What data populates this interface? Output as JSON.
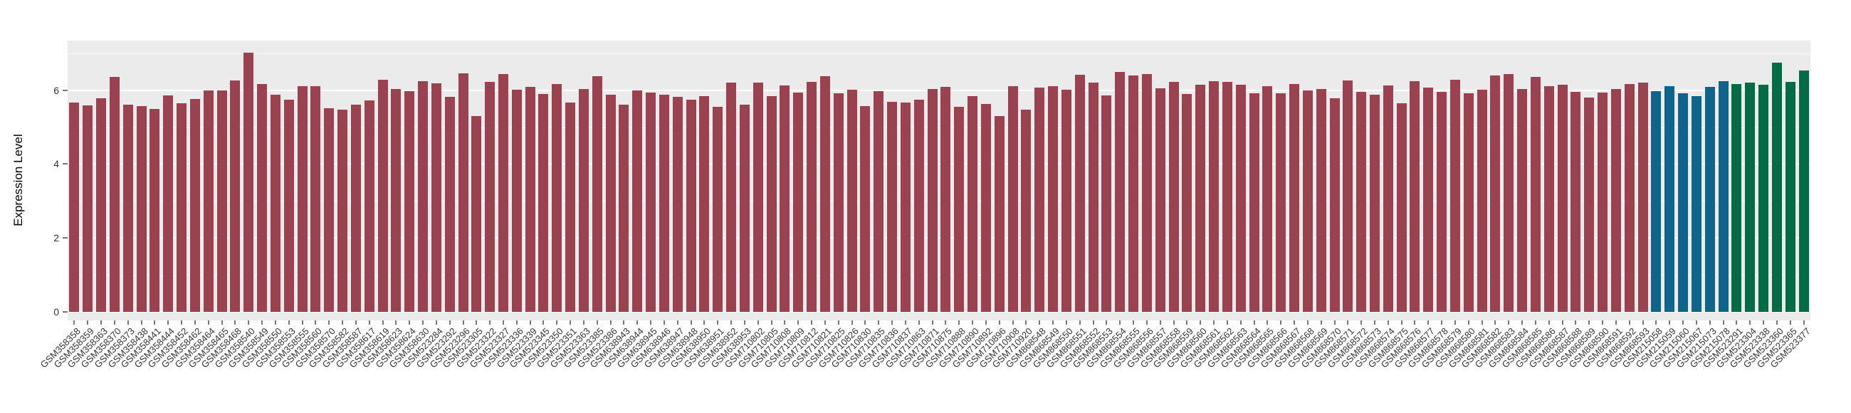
{
  "figure": {
    "kind": "ggplot-style grouped bar chart, no title, no legend"
  },
  "chart_data": {
    "type": "bar",
    "title": "",
    "xlabel": "",
    "ylabel": "Expression Level",
    "ylim": [
      0,
      7.35
    ],
    "y_ticks": [
      0,
      2,
      4,
      6
    ],
    "y_minor_gridlines": [
      1,
      3,
      5,
      7
    ],
    "grid": "white major and minor horizontal gridlines on grey panel",
    "legend_position": "none",
    "panel_background": "#EBEBEB",
    "x_label_angle_deg": 45,
    "series_groups": [
      {
        "name": "group-1",
        "color": "#9A4250",
        "start_index": 0,
        "end_index": 117
      },
      {
        "name": "group-2",
        "color": "#0E648B",
        "start_index": 118,
        "end_index": 123
      },
      {
        "name": "group-3",
        "color": "#036B45",
        "start_index": 124,
        "end_index": 129
      }
    ],
    "categories": [
      "GSM358358",
      "GSM358359",
      "GSM358363",
      "GSM358370",
      "GSM358373",
      "GSM358438",
      "GSM358441",
      "GSM358444",
      "GSM358452",
      "GSM358462",
      "GSM358464",
      "GSM358465",
      "GSM358468",
      "GSM358540",
      "GSM358549",
      "GSM358550",
      "GSM358553",
      "GSM358555",
      "GSM358560",
      "GSM358570",
      "GSM358582",
      "GSM358587",
      "GSM358617",
      "GSM358619",
      "GSM358623",
      "GSM358624",
      "GSM358630",
      "GSM523284",
      "GSM523292",
      "GSM523296",
      "GSM523305",
      "GSM523322",
      "GSM523327",
      "GSM523336",
      "GSM523339",
      "GSM523345",
      "GSM523350",
      "GSM523351",
      "GSM523363",
      "GSM523385",
      "GSM523386",
      "GSM638943",
      "GSM638944",
      "GSM638945",
      "GSM638946",
      "GSM638947",
      "GSM638948",
      "GSM638950",
      "GSM638951",
      "GSM638952",
      "GSM638953",
      "GSM710802",
      "GSM710805",
      "GSM710808",
      "GSM710809",
      "GSM710812",
      "GSM710821",
      "GSM710825",
      "GSM710826",
      "GSM710830",
      "GSM710835",
      "GSM710836",
      "GSM710837",
      "GSM710863",
      "GSM710871",
      "GSM710875",
      "GSM710888",
      "GSM710890",
      "GSM710892",
      "GSM710896",
      "GSM710908",
      "GSM710920",
      "GSM868548",
      "GSM868549",
      "GSM868550",
      "GSM868551",
      "GSM868552",
      "GSM868553",
      "GSM868554",
      "GSM868555",
      "GSM868556",
      "GSM868557",
      "GSM868558",
      "GSM868559",
      "GSM868560",
      "GSM868561",
      "GSM868562",
      "GSM868563",
      "GSM868564",
      "GSM868565",
      "GSM868566",
      "GSM868567",
      "GSM868568",
      "GSM868569",
      "GSM868570",
      "GSM868571",
      "GSM868572",
      "GSM868573",
      "GSM868574",
      "GSM868575",
      "GSM868576",
      "GSM868577",
      "GSM868578",
      "GSM868579",
      "GSM868580",
      "GSM868581",
      "GSM868582",
      "GSM868583",
      "GSM868584",
      "GSM868585",
      "GSM868586",
      "GSM868587",
      "GSM868588",
      "GSM868589",
      "GSM868590",
      "GSM868591",
      "GSM868592",
      "GSM868593",
      "GSM215058",
      "GSM215059",
      "GSM215060",
      "GSM215067",
      "GSM215073",
      "GSM215078",
      "GSM523291",
      "GSM523304",
      "GSM523338",
      "GSM523360",
      "GSM523365",
      "GSM523377"
    ],
    "values": [
      5.66,
      5.58,
      5.78,
      6.35,
      5.61,
      5.56,
      5.5,
      5.85,
      5.65,
      5.76,
      6.0,
      6.0,
      6.27,
      7.01,
      6.16,
      5.87,
      5.74,
      6.11,
      6.11,
      5.52,
      5.48,
      5.61,
      5.72,
      6.28,
      6.04,
      5.98,
      6.25,
      6.19,
      5.81,
      6.46,
      5.3,
      6.23,
      6.43,
      6.02,
      6.09,
      5.9,
      6.17,
      5.66,
      6.03,
      6.37,
      5.88,
      5.6,
      5.99,
      5.93,
      5.87,
      5.82,
      5.74,
      5.84,
      5.55,
      6.2,
      5.6,
      6.21,
      5.83,
      6.13,
      5.93,
      6.22,
      6.38,
      5.92,
      6.01,
      5.56,
      5.97,
      5.68,
      5.66,
      5.74,
      6.04,
      6.08,
      5.55,
      5.83,
      5.63,
      5.3,
      6.11,
      5.48,
      6.06,
      6.1,
      6.01,
      6.41,
      6.21,
      5.85,
      6.49,
      6.39,
      6.43,
      6.05,
      6.22,
      5.9,
      6.14,
      6.25,
      6.22,
      6.14,
      5.92,
      6.1,
      5.92,
      6.17,
      5.99,
      6.04,
      5.78,
      6.26,
      5.95,
      5.88,
      6.13,
      5.65,
      6.24,
      6.07,
      5.96,
      6.29,
      5.91,
      6.01,
      6.39,
      6.43,
      6.03,
      6.35,
      6.11,
      6.14,
      5.95,
      5.79,
      5.94,
      6.04,
      6.16,
      6.2,
      5.98,
      6.1,
      5.91,
      5.84,
      6.08,
      6.24,
      6.16,
      6.21,
      6.14,
      6.74,
      6.22,
      6.53
    ]
  }
}
